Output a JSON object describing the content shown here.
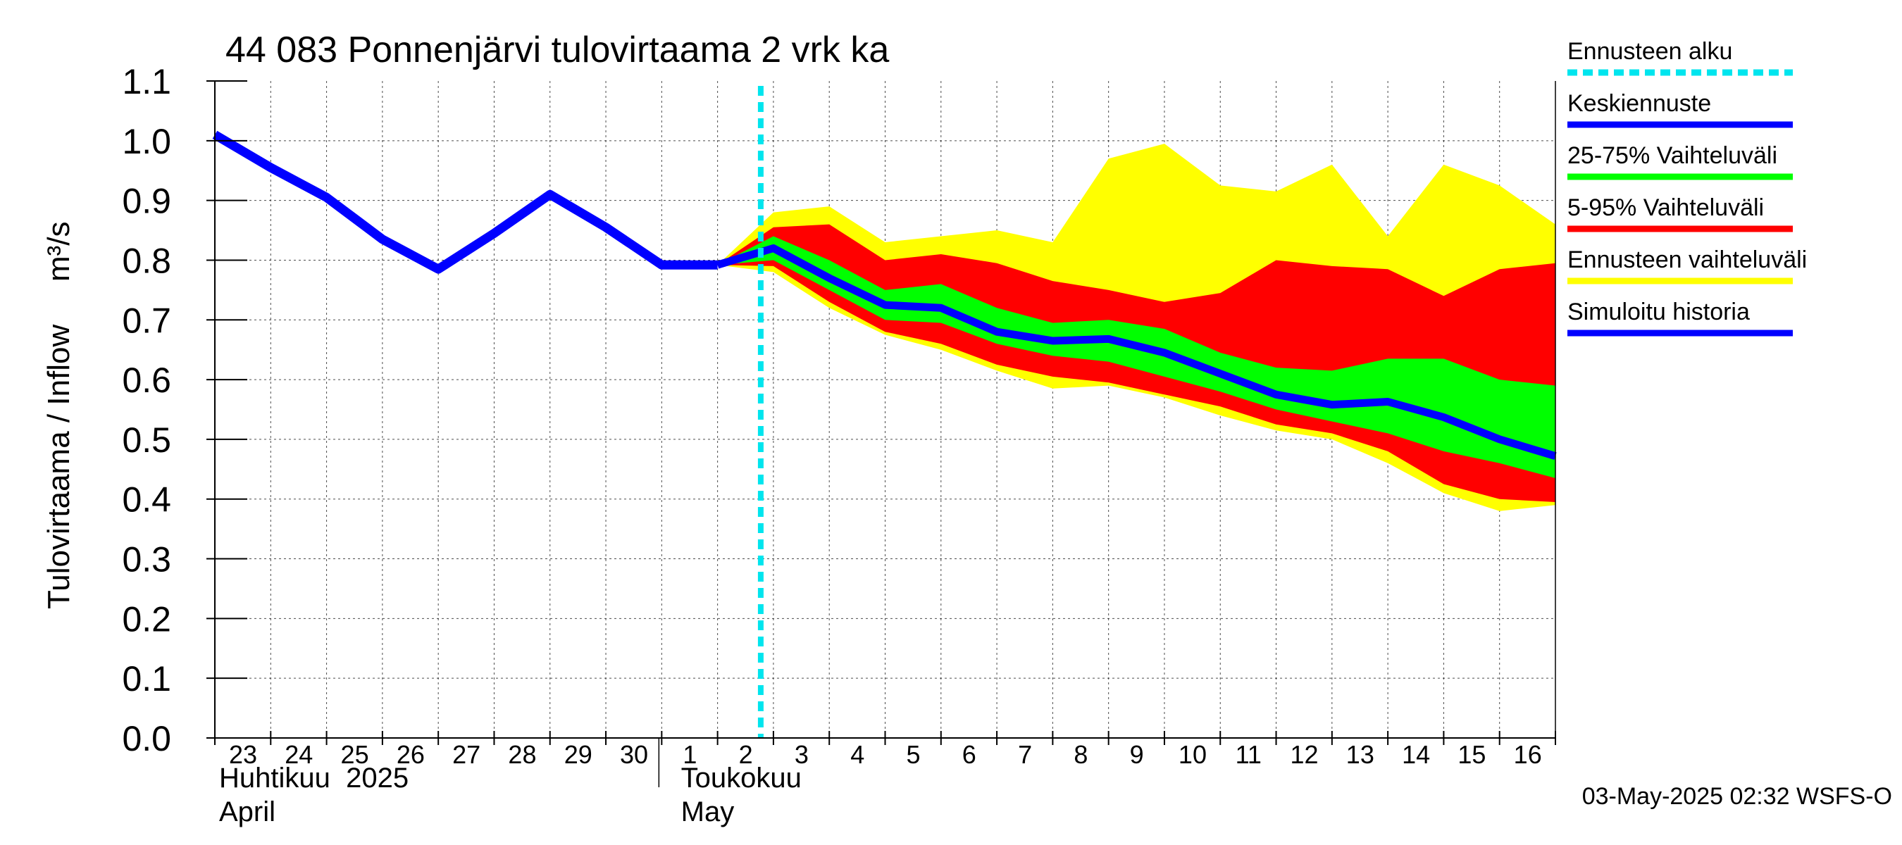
{
  "chart_data": {
    "type": "area",
    "title": "44 083 Ponnenjärvi tulovirtaama 2 vrk ka",
    "ylabel": "Tulovirtaama / Inflow",
    "yunit": "m³/s",
    "ylim": [
      0.0,
      1.1
    ],
    "yticks": [
      "0.0",
      "0.1",
      "0.2",
      "0.3",
      "0.4",
      "0.5",
      "0.6",
      "0.7",
      "0.8",
      "0.9",
      "1.0",
      "1.1"
    ],
    "xlim": [
      "2025-04-23",
      "2025-05-17"
    ],
    "grid": true,
    "day_labels": [
      "23",
      "24",
      "25",
      "26",
      "27",
      "28",
      "29",
      "30",
      "1",
      "2",
      "3",
      "4",
      "5",
      "6",
      "7",
      "8",
      "9",
      "10",
      "11",
      "12",
      "13",
      "14",
      "15",
      "16"
    ],
    "months": [
      {
        "fi": "Huhtikuu  2025",
        "en": "April"
      },
      {
        "fi": "Toukokuu",
        "en": "May"
      }
    ],
    "forecast_start": "2025-05-03",
    "history": {
      "name": "Simuloitu historia",
      "color": "#0000ff",
      "x": [
        "2025-04-23",
        "2025-04-24",
        "2025-04-25",
        "2025-04-26",
        "2025-04-27",
        "2025-04-28",
        "2025-04-29",
        "2025-04-30",
        "2025-05-01",
        "2025-05-02"
      ],
      "y": [
        1.01,
        0.955,
        0.905,
        0.835,
        0.785,
        0.845,
        0.91,
        0.855,
        0.792,
        0.792
      ]
    },
    "forecast_x": [
      "2025-05-02",
      "2025-05-03",
      "2025-05-04",
      "2025-05-05",
      "2025-05-06",
      "2025-05-07",
      "2025-05-08",
      "2025-05-09",
      "2025-05-10",
      "2025-05-11",
      "2025-05-12",
      "2025-05-13",
      "2025-05-14",
      "2025-05-15",
      "2025-05-16",
      "2025-05-17"
    ],
    "bands": [
      {
        "name": "Ennusteen vaihteluväli",
        "color": "#ffff00",
        "upper": [
          0.792,
          0.88,
          0.89,
          0.83,
          0.84,
          0.85,
          0.83,
          0.97,
          0.995,
          0.925,
          0.915,
          0.96,
          0.84,
          0.96,
          0.925,
          0.86
        ],
        "lower": [
          0.792,
          0.78,
          0.72,
          0.675,
          0.65,
          0.615,
          0.585,
          0.59,
          0.57,
          0.54,
          0.515,
          0.5,
          0.46,
          0.41,
          0.38,
          0.39
        ]
      },
      {
        "name": "5-95% Vaihteluväli",
        "color": "#ff0000",
        "upper": [
          0.792,
          0.855,
          0.86,
          0.8,
          0.81,
          0.795,
          0.765,
          0.75,
          0.73,
          0.745,
          0.8,
          0.79,
          0.785,
          0.74,
          0.785,
          0.795
        ],
        "lower": [
          0.792,
          0.79,
          0.73,
          0.68,
          0.66,
          0.625,
          0.605,
          0.595,
          0.575,
          0.555,
          0.525,
          0.51,
          0.48,
          0.425,
          0.4,
          0.395
        ]
      },
      {
        "name": "25-75% Vaihteluväli",
        "color": "#00ff00",
        "upper": [
          0.792,
          0.84,
          0.8,
          0.75,
          0.76,
          0.72,
          0.695,
          0.7,
          0.685,
          0.645,
          0.62,
          0.615,
          0.635,
          0.635,
          0.6,
          0.59
        ],
        "lower": [
          0.792,
          0.8,
          0.75,
          0.7,
          0.695,
          0.66,
          0.64,
          0.63,
          0.605,
          0.58,
          0.55,
          0.53,
          0.51,
          0.48,
          0.46,
          0.435
        ]
      }
    ],
    "median": {
      "name": "Keskiennuste",
      "color": "#0000ff",
      "y": [
        0.792,
        0.82,
        0.77,
        0.725,
        0.72,
        0.68,
        0.665,
        0.668,
        0.645,
        0.61,
        0.575,
        0.558,
        0.563,
        0.537,
        0.5,
        0.472
      ]
    },
    "legend": {
      "placement": "right",
      "items": [
        {
          "label": "Ennusteen alku",
          "color": "#00e5ee",
          "style": "dashed"
        },
        {
          "label": "Keskiennuste",
          "color": "#0000ff",
          "style": "line"
        },
        {
          "label": "25-75% Vaihteluväli",
          "color": "#00ff00",
          "style": "line"
        },
        {
          "label": "5-95% Vaihteluväli",
          "color": "#ff0000",
          "style": "line"
        },
        {
          "label": "Ennusteen vaihteluväli",
          "color": "#ffff00",
          "style": "line"
        },
        {
          "label": "Simuloitu historia",
          "color": "#0000ff",
          "style": "line"
        }
      ]
    },
    "timestamp": "03-May-2025 02:32 WSFS-O"
  }
}
